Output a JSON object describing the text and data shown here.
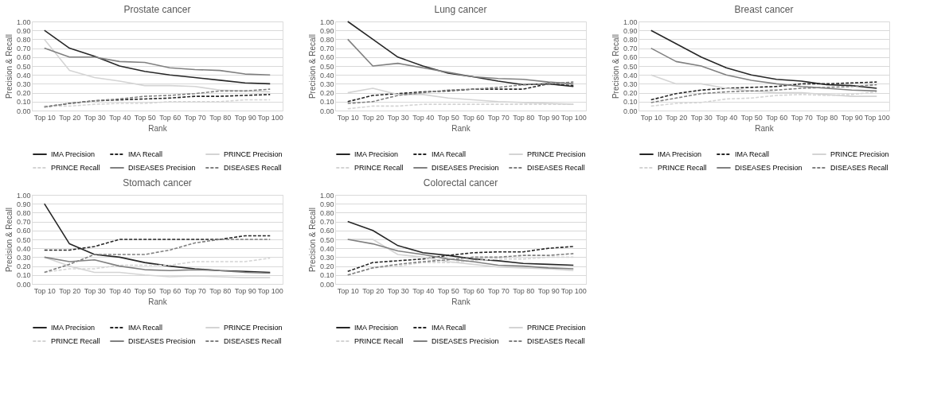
{
  "chart_data": [
    {
      "type": "line",
      "title": "Prostate cancer",
      "xlabel": "Rank",
      "ylabel": "Precision & Recall",
      "categories": [
        "Top 10",
        "Top 20",
        "Top 30",
        "Top 40",
        "Top 50",
        "Top 60",
        "Top 70",
        "Top 80",
        "Top 90",
        "Top 100"
      ],
      "ylim": [
        0,
        1
      ],
      "yticks": [
        {
          "value": 0,
          "label": "0.00"
        },
        {
          "value": 0.1,
          "label": "0.10"
        },
        {
          "value": 0.2,
          "label": "0.20"
        },
        {
          "value": 0.3,
          "label": "0.30"
        },
        {
          "value": 0.4,
          "label": "0.40"
        },
        {
          "value": 0.5,
          "label": "0.50"
        },
        {
          "value": 0.6,
          "label": "0.60"
        },
        {
          "value": 0.7,
          "label": "0.70"
        },
        {
          "value": 0.8,
          "label": "0.80"
        },
        {
          "value": 0.9,
          "label": "0.90"
        },
        {
          "value": 1,
          "label": "1.00"
        }
      ],
      "grid": "y",
      "legend": "bottom",
      "marker": "none",
      "series": [
        {
          "name": "IMA Precision",
          "color": "#262626",
          "line_style": "solid",
          "values": [
            0.9,
            0.7,
            0.61,
            0.5,
            0.44,
            0.4,
            0.37,
            0.34,
            0.31,
            0.3
          ]
        },
        {
          "name": "IMA Recall",
          "color": "#262626",
          "line_style": "dashed",
          "values": [
            0.04,
            0.08,
            0.11,
            0.12,
            0.13,
            0.14,
            0.16,
            0.16,
            0.17,
            0.18
          ]
        },
        {
          "name": "PRINCE Precision",
          "color": "#d4d4d4",
          "line_style": "solid",
          "values": [
            0.8,
            0.45,
            0.37,
            0.33,
            0.28,
            0.28,
            0.27,
            0.23,
            0.22,
            0.21
          ]
        },
        {
          "name": "PRINCE Recall",
          "color": "#d4d4d4",
          "line_style": "dashed",
          "values": [
            0.05,
            0.05,
            0.07,
            0.08,
            0.08,
            0.1,
            0.1,
            0.1,
            0.12,
            0.12
          ]
        },
        {
          "name": "DISEASES Precision",
          "color": "#808080",
          "line_style": "solid",
          "values": [
            0.7,
            0.6,
            0.6,
            0.55,
            0.54,
            0.48,
            0.46,
            0.45,
            0.41,
            0.4
          ]
        },
        {
          "name": "DISEASES Recall",
          "color": "#808080",
          "line_style": "dashed",
          "values": [
            0.04,
            0.08,
            0.11,
            0.13,
            0.16,
            0.17,
            0.19,
            0.22,
            0.22,
            0.24
          ]
        }
      ]
    },
    {
      "type": "line",
      "title": "Lung cancer",
      "xlabel": "Rank",
      "ylabel": "Precision & Recall",
      "categories": [
        "Top 10",
        "Top 20",
        "Top 30",
        "Top 40",
        "Top 50",
        "Top 60",
        "Top 70",
        "Top 80",
        "Top 90",
        "Top 100"
      ],
      "ylim": [
        0,
        1
      ],
      "yticks": [
        {
          "value": 0,
          "label": "0.00"
        },
        {
          "value": 0.1,
          "label": "0.10"
        },
        {
          "value": 0.2,
          "label": "0.20"
        },
        {
          "value": 0.3,
          "label": "0.30"
        },
        {
          "value": 0.4,
          "label": "0.40"
        },
        {
          "value": 0.5,
          "label": "0.50"
        },
        {
          "value": 0.6,
          "label": "0.60"
        },
        {
          "value": 0.7,
          "label": "0.70"
        },
        {
          "value": 0.8,
          "label": "0.80"
        },
        {
          "value": 0.9,
          "label": "0.90"
        },
        {
          "value": 1,
          "label": "1.00"
        }
      ],
      "grid": "y",
      "legend": "bottom",
      "marker": "none",
      "series": [
        {
          "name": "IMA Precision",
          "color": "#262626",
          "line_style": "solid",
          "values": [
            1.0,
            0.8,
            0.6,
            0.5,
            0.42,
            0.38,
            0.33,
            0.29,
            0.3,
            0.27
          ]
        },
        {
          "name": "IMA Recall",
          "color": "#262626",
          "line_style": "dashed",
          "values": [
            0.1,
            0.17,
            0.19,
            0.21,
            0.22,
            0.24,
            0.24,
            0.24,
            0.3,
            0.28
          ]
        },
        {
          "name": "PRINCE Precision",
          "color": "#d4d4d4",
          "line_style": "solid",
          "values": [
            0.2,
            0.25,
            0.18,
            0.18,
            0.14,
            0.12,
            0.1,
            0.09,
            0.08,
            0.07
          ]
        },
        {
          "name": "PRINCE Recall",
          "color": "#d4d4d4",
          "line_style": "dashed",
          "values": [
            0.02,
            0.05,
            0.05,
            0.07,
            0.07,
            0.07,
            0.07,
            0.07,
            0.07,
            0.07
          ]
        },
        {
          "name": "DISEASES Precision",
          "color": "#808080",
          "line_style": "solid",
          "values": [
            0.8,
            0.5,
            0.53,
            0.48,
            0.43,
            0.38,
            0.36,
            0.35,
            0.32,
            0.3
          ]
        },
        {
          "name": "DISEASES Recall",
          "color": "#808080",
          "line_style": "dashed",
          "values": [
            0.08,
            0.1,
            0.17,
            0.2,
            0.23,
            0.24,
            0.26,
            0.29,
            0.3,
            0.32
          ]
        }
      ]
    },
    {
      "type": "line",
      "title": "Breast cancer",
      "xlabel": "Rank",
      "ylabel": "Precision & Recall",
      "categories": [
        "Top 10",
        "Top 20",
        "Top 30",
        "Top 40",
        "Top 50",
        "Top 60",
        "Top 70",
        "Top 80",
        "Top 90",
        "Top 100"
      ],
      "ylim": [
        0,
        1
      ],
      "yticks": [
        {
          "value": 0,
          "label": "0.00"
        },
        {
          "value": 0.1,
          "label": "0.10"
        },
        {
          "value": 0.2,
          "label": "0.20"
        },
        {
          "value": 0.3,
          "label": "0.30"
        },
        {
          "value": 0.4,
          "label": "0.40"
        },
        {
          "value": 0.5,
          "label": "0.50"
        },
        {
          "value": 0.6,
          "label": "0.60"
        },
        {
          "value": 0.7,
          "label": "0.70"
        },
        {
          "value": 0.8,
          "label": "0.80"
        },
        {
          "value": 0.9,
          "label": "0.90"
        },
        {
          "value": 1,
          "label": "1.00"
        }
      ],
      "grid": "y",
      "legend": "bottom",
      "marker": "none",
      "series": [
        {
          "name": "IMA Precision",
          "color": "#262626",
          "line_style": "solid",
          "values": [
            0.9,
            0.75,
            0.6,
            0.48,
            0.4,
            0.35,
            0.33,
            0.29,
            0.28,
            0.25
          ]
        },
        {
          "name": "IMA Recall",
          "color": "#262626",
          "line_style": "dashed",
          "values": [
            0.12,
            0.19,
            0.23,
            0.25,
            0.26,
            0.27,
            0.3,
            0.3,
            0.31,
            0.32
          ]
        },
        {
          "name": "PRINCE Precision",
          "color": "#d4d4d4",
          "line_style": "solid",
          "values": [
            0.4,
            0.3,
            0.3,
            0.25,
            0.22,
            0.2,
            0.2,
            0.18,
            0.16,
            0.16
          ]
        },
        {
          "name": "PRINCE Recall",
          "color": "#d4d4d4",
          "line_style": "dashed",
          "values": [
            0.05,
            0.08,
            0.09,
            0.13,
            0.14,
            0.17,
            0.18,
            0.17,
            0.18,
            0.21
          ]
        },
        {
          "name": "DISEASES Precision",
          "color": "#808080",
          "line_style": "solid",
          "values": [
            0.7,
            0.55,
            0.5,
            0.4,
            0.34,
            0.3,
            0.27,
            0.25,
            0.23,
            0.22
          ]
        },
        {
          "name": "DISEASES Recall",
          "color": "#808080",
          "line_style": "dashed",
          "values": [
            0.09,
            0.14,
            0.19,
            0.21,
            0.22,
            0.23,
            0.25,
            0.26,
            0.27,
            0.29
          ]
        }
      ]
    },
    {
      "type": "line",
      "title": "Stomach cancer",
      "xlabel": "Rank",
      "ylabel": "Precision & Recall",
      "categories": [
        "Top 10",
        "Top 20",
        "Top 30",
        "Top 40",
        "Top 50",
        "Top 60",
        "Top 70",
        "Top 80",
        "Top 90",
        "Top 100"
      ],
      "ylim": [
        0,
        1
      ],
      "yticks": [
        {
          "value": 0,
          "label": "0.00"
        },
        {
          "value": 0.1,
          "label": "0.10"
        },
        {
          "value": 0.2,
          "label": "0.20"
        },
        {
          "value": 0.3,
          "label": "0.30"
        },
        {
          "value": 0.4,
          "label": "0.40"
        },
        {
          "value": 0.5,
          "label": "0.50"
        },
        {
          "value": 0.6,
          "label": "0.60"
        },
        {
          "value": 0.7,
          "label": "0.70"
        },
        {
          "value": 0.8,
          "label": "0.80"
        },
        {
          "value": 0.9,
          "label": "0.90"
        },
        {
          "value": 1,
          "label": "1.00"
        }
      ],
      "grid": "y",
      "legend": "bottom",
      "marker": "none",
      "series": [
        {
          "name": "IMA Precision",
          "color": "#262626",
          "line_style": "solid",
          "values": [
            0.9,
            0.45,
            0.33,
            0.3,
            0.24,
            0.2,
            0.17,
            0.15,
            0.14,
            0.13
          ]
        },
        {
          "name": "IMA Recall",
          "color": "#262626",
          "line_style": "dashed",
          "values": [
            0.38,
            0.38,
            0.42,
            0.5,
            0.5,
            0.5,
            0.5,
            0.5,
            0.54,
            0.54
          ]
        },
        {
          "name": "PRINCE Precision",
          "color": "#d4d4d4",
          "line_style": "solid",
          "values": [
            0.3,
            0.2,
            0.13,
            0.13,
            0.1,
            0.08,
            0.09,
            0.08,
            0.07,
            0.07
          ]
        },
        {
          "name": "PRINCE Recall",
          "color": "#d4d4d4",
          "line_style": "dashed",
          "values": [
            0.13,
            0.17,
            0.17,
            0.21,
            0.21,
            0.21,
            0.25,
            0.25,
            0.25,
            0.29
          ]
        },
        {
          "name": "DISEASES Precision",
          "color": "#808080",
          "line_style": "solid",
          "values": [
            0.3,
            0.25,
            0.27,
            0.2,
            0.16,
            0.15,
            0.16,
            0.15,
            0.13,
            0.12
          ]
        },
        {
          "name": "DISEASES Recall",
          "color": "#808080",
          "line_style": "dashed",
          "values": [
            0.13,
            0.22,
            0.33,
            0.33,
            0.33,
            0.38,
            0.46,
            0.5,
            0.5,
            0.5
          ]
        }
      ]
    },
    {
      "type": "line",
      "title": "Colorectal cancer",
      "xlabel": "Rank",
      "ylabel": "Precision & Recall",
      "categories": [
        "Top 10",
        "Top 20",
        "Top 30",
        "Top 40",
        "Top 50",
        "Top 60",
        "Top 70",
        "Top 80",
        "Top 90",
        "Top 100"
      ],
      "ylim": [
        0,
        1
      ],
      "yticks": [
        {
          "value": 0,
          "label": "0.00"
        },
        {
          "value": 0.1,
          "label": "0.10"
        },
        {
          "value": 0.2,
          "label": "0.20"
        },
        {
          "value": 0.3,
          "label": "0.30"
        },
        {
          "value": 0.4,
          "label": "0.40"
        },
        {
          "value": 0.5,
          "label": "0.50"
        },
        {
          "value": 0.6,
          "label": "0.60"
        },
        {
          "value": 0.7,
          "label": "0.70"
        },
        {
          "value": 0.8,
          "label": "0.80"
        },
        {
          "value": 0.9,
          "label": "0.90"
        },
        {
          "value": 1,
          "label": "1.00"
        }
      ],
      "grid": "y",
      "legend": "bottom",
      "marker": "none",
      "series": [
        {
          "name": "IMA Precision",
          "color": "#262626",
          "line_style": "solid",
          "values": [
            0.7,
            0.6,
            0.43,
            0.35,
            0.32,
            0.28,
            0.26,
            0.23,
            0.22,
            0.21
          ]
        },
        {
          "name": "IMA Recall",
          "color": "#262626",
          "line_style": "dashed",
          "values": [
            0.14,
            0.24,
            0.26,
            0.28,
            0.32,
            0.35,
            0.36,
            0.36,
            0.4,
            0.42
          ]
        },
        {
          "name": "PRINCE Precision",
          "color": "#d4d4d4",
          "line_style": "solid",
          "values": [
            0.5,
            0.5,
            0.33,
            0.3,
            0.25,
            0.22,
            0.19,
            0.18,
            0.17,
            0.15
          ]
        },
        {
          "name": "PRINCE Recall",
          "color": "#d4d4d4",
          "line_style": "dashed",
          "values": [
            0.1,
            0.18,
            0.2,
            0.24,
            0.24,
            0.26,
            0.28,
            0.28,
            0.3,
            0.3
          ]
        },
        {
          "name": "DISEASES Precision",
          "color": "#808080",
          "line_style": "solid",
          "values": [
            0.5,
            0.45,
            0.37,
            0.33,
            0.28,
            0.25,
            0.21,
            0.2,
            0.18,
            0.17
          ]
        },
        {
          "name": "DISEASES Recall",
          "color": "#808080",
          "line_style": "dashed",
          "values": [
            0.1,
            0.18,
            0.22,
            0.25,
            0.27,
            0.3,
            0.3,
            0.32,
            0.32,
            0.34
          ]
        }
      ]
    }
  ]
}
